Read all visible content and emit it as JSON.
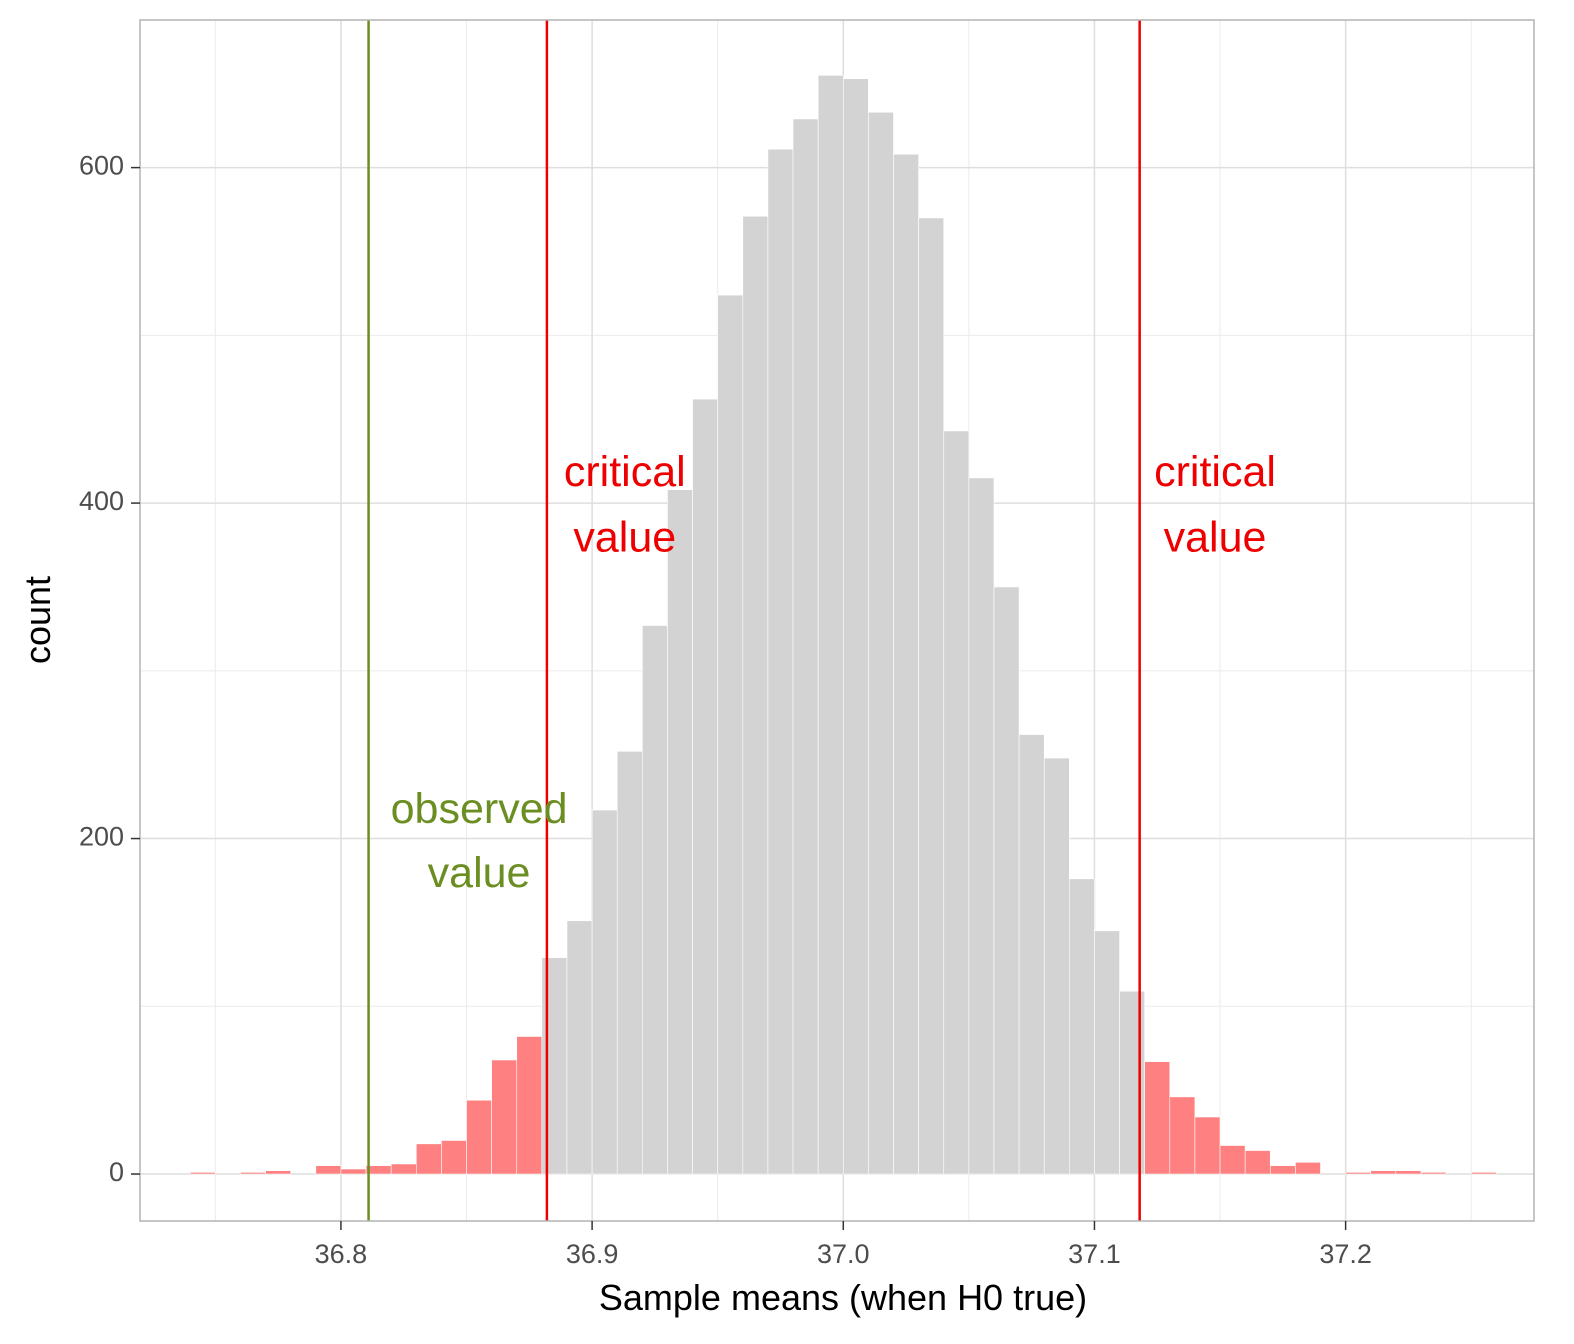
{
  "chart_data": {
    "type": "bar",
    "subtype": "histogram",
    "title": "",
    "xlabel": "Sample means (when H0 true)",
    "ylabel": "count",
    "xlim": [
      36.72,
      37.275
    ],
    "ylim": [
      -28,
      688
    ],
    "bin_width": 0.01,
    "x_ticks": [
      36.8,
      36.9,
      37.0,
      37.1,
      37.2
    ],
    "x_tick_labels": [
      "36.8",
      "36.9",
      "37.0",
      "37.1",
      "37.2"
    ],
    "y_ticks": [
      0,
      200,
      400,
      600
    ],
    "y_tick_labels": [
      "0",
      "200",
      "400",
      "600"
    ],
    "y_minor_ticks": [
      100,
      300,
      500
    ],
    "x_minor_ticks": [
      36.75,
      36.85,
      36.95,
      37.05,
      37.15,
      37.25
    ],
    "grid": true,
    "colors": {
      "middle_bins": "#d3d3d3",
      "tail_bins": "#ff8080",
      "critical_lines": "#ee0000",
      "observed_line": "#6b8e23",
      "grid": "#ebebeb",
      "panel_border": "#b3b3b3"
    },
    "bins": [
      {
        "x": 36.745,
        "count": 1,
        "region": "tail"
      },
      {
        "x": 36.755,
        "count": 0,
        "region": "tail"
      },
      {
        "x": 36.765,
        "count": 1,
        "region": "tail"
      },
      {
        "x": 36.775,
        "count": 2,
        "region": "tail"
      },
      {
        "x": 36.785,
        "count": 0,
        "region": "tail"
      },
      {
        "x": 36.795,
        "count": 5,
        "region": "tail"
      },
      {
        "x": 36.805,
        "count": 3,
        "region": "tail"
      },
      {
        "x": 36.815,
        "count": 5,
        "region": "tail"
      },
      {
        "x": 36.825,
        "count": 6,
        "region": "tail"
      },
      {
        "x": 36.835,
        "count": 18,
        "region": "tail"
      },
      {
        "x": 36.845,
        "count": 20,
        "region": "tail"
      },
      {
        "x": 36.855,
        "count": 44,
        "region": "tail"
      },
      {
        "x": 36.865,
        "count": 68,
        "region": "tail"
      },
      {
        "x": 36.875,
        "count": 82,
        "region": "tail"
      },
      {
        "x": 36.885,
        "count": 129,
        "region": "middle"
      },
      {
        "x": 36.895,
        "count": 151,
        "region": "middle"
      },
      {
        "x": 36.905,
        "count": 217,
        "region": "middle"
      },
      {
        "x": 36.915,
        "count": 252,
        "region": "middle"
      },
      {
        "x": 36.925,
        "count": 327,
        "region": "middle"
      },
      {
        "x": 36.935,
        "count": 408,
        "region": "middle"
      },
      {
        "x": 36.945,
        "count": 462,
        "region": "middle"
      },
      {
        "x": 36.955,
        "count": 524,
        "region": "middle"
      },
      {
        "x": 36.965,
        "count": 571,
        "region": "middle"
      },
      {
        "x": 36.975,
        "count": 611,
        "region": "middle"
      },
      {
        "x": 36.985,
        "count": 629,
        "region": "middle"
      },
      {
        "x": 36.995,
        "count": 655,
        "region": "middle"
      },
      {
        "x": 37.005,
        "count": 653,
        "region": "middle"
      },
      {
        "x": 37.015,
        "count": 633,
        "region": "middle"
      },
      {
        "x": 37.025,
        "count": 608,
        "region": "middle"
      },
      {
        "x": 37.035,
        "count": 570,
        "region": "middle"
      },
      {
        "x": 37.045,
        "count": 443,
        "region": "middle"
      },
      {
        "x": 37.055,
        "count": 415,
        "region": "middle"
      },
      {
        "x": 37.065,
        "count": 350,
        "region": "middle"
      },
      {
        "x": 37.075,
        "count": 262,
        "region": "middle"
      },
      {
        "x": 37.085,
        "count": 248,
        "region": "middle"
      },
      {
        "x": 37.095,
        "count": 176,
        "region": "middle"
      },
      {
        "x": 37.105,
        "count": 145,
        "region": "middle"
      },
      {
        "x": 37.115,
        "count": 109,
        "region": "middle"
      },
      {
        "x": 37.125,
        "count": 67,
        "region": "tail"
      },
      {
        "x": 37.135,
        "count": 46,
        "region": "tail"
      },
      {
        "x": 37.145,
        "count": 34,
        "region": "tail"
      },
      {
        "x": 37.155,
        "count": 17,
        "region": "tail"
      },
      {
        "x": 37.165,
        "count": 14,
        "region": "tail"
      },
      {
        "x": 37.175,
        "count": 5,
        "region": "tail"
      },
      {
        "x": 37.185,
        "count": 7,
        "region": "tail"
      },
      {
        "x": 37.195,
        "count": 0,
        "region": "tail"
      },
      {
        "x": 37.205,
        "count": 1,
        "region": "tail"
      },
      {
        "x": 37.215,
        "count": 2,
        "region": "tail"
      },
      {
        "x": 37.225,
        "count": 2,
        "region": "tail"
      },
      {
        "x": 37.235,
        "count": 1,
        "region": "tail"
      },
      {
        "x": 37.245,
        "count": 0,
        "region": "tail"
      },
      {
        "x": 37.255,
        "count": 1,
        "region": "tail"
      }
    ],
    "vlines": [
      {
        "x": 36.882,
        "kind": "critical"
      },
      {
        "x": 37.118,
        "kind": "critical"
      },
      {
        "x": 36.811,
        "kind": "observed"
      }
    ],
    "annotations": [
      {
        "lines": [
          "critical",
          "value"
        ],
        "x": 36.913,
        "y_top": 417,
        "y_bottom": 378,
        "kind": "critical"
      },
      {
        "lines": [
          "critical",
          "value"
        ],
        "x": 37.148,
        "y_top": 417,
        "y_bottom": 378,
        "kind": "critical"
      },
      {
        "lines": [
          "observed",
          "value"
        ],
        "x": 36.855,
        "y_top": 216,
        "y_bottom": 178,
        "kind": "observed"
      }
    ]
  }
}
